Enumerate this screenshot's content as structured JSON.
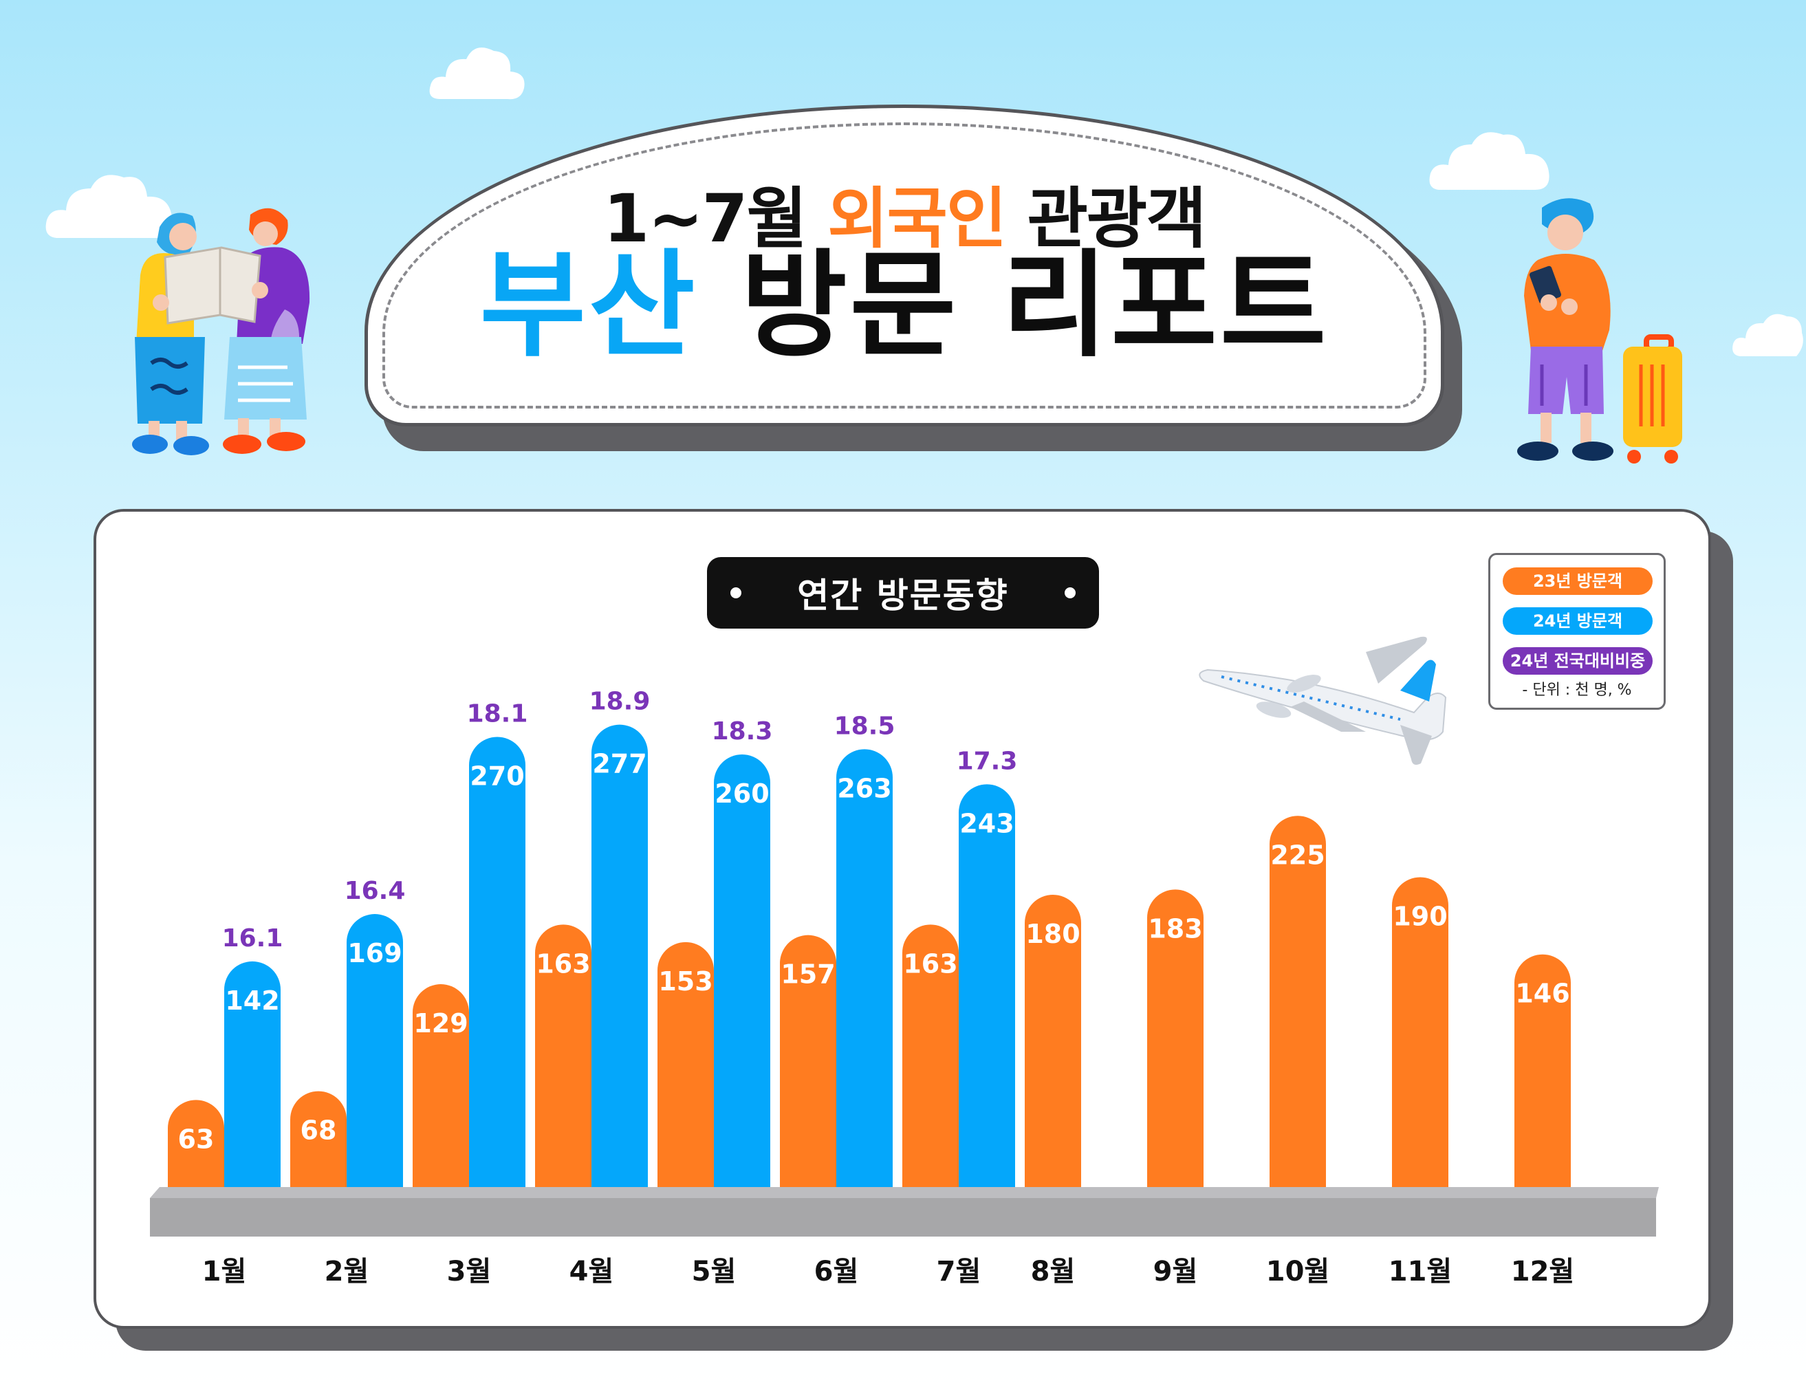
{
  "title": {
    "line1_prefix": "1~7월 ",
    "line1_accent": "외국인",
    "line1_suffix": " 관광객",
    "line2_accent": "부산",
    "line2_rest": " 방문 리포트"
  },
  "section_title": "연간 방문동향",
  "legend": {
    "items": [
      {
        "label": "23년 방문객",
        "color": "#ff7c20"
      },
      {
        "label": "24년 방문객",
        "color": "#04a7fb"
      },
      {
        "label": "24년 전국대비비중",
        "color": "#7a35b8"
      }
    ],
    "unit": "- 단위 : 천 명, %"
  },
  "colors": {
    "y2023": "#ff7c20",
    "y2024": "#04a7fb",
    "share": "#7a35b8",
    "baseline": "#a7a7a9"
  },
  "chart_data": {
    "type": "bar",
    "categories": [
      "1월",
      "2월",
      "3월",
      "4월",
      "5월",
      "6월",
      "7월",
      "8월",
      "9월",
      "10월",
      "11월",
      "12월"
    ],
    "series": [
      {
        "name": "23년 방문객",
        "values": [
          63,
          68,
          129,
          163,
          153,
          157,
          163,
          180,
          183,
          225,
          190,
          146
        ]
      },
      {
        "name": "24년 방문객",
        "values": [
          142,
          169,
          270,
          277,
          260,
          263,
          243,
          null,
          null,
          null,
          null,
          null
        ]
      }
    ],
    "annotations": {
      "name": "24년 전국대비비중",
      "values": [
        "16.1",
        "16.4",
        "18.1",
        "18.9",
        "18.3",
        "18.5",
        "17.3",
        null,
        null,
        null,
        null,
        null
      ]
    },
    "unit": "- 단위 : 천 명, %",
    "ylim": [
      0,
      300
    ],
    "legend_position": "top-right",
    "grid": false
  },
  "icons": {
    "plane": "airplane-icon",
    "travelers_left": "travelers-with-map-illustration",
    "traveler_right": "traveler-with-suitcase-illustration"
  }
}
